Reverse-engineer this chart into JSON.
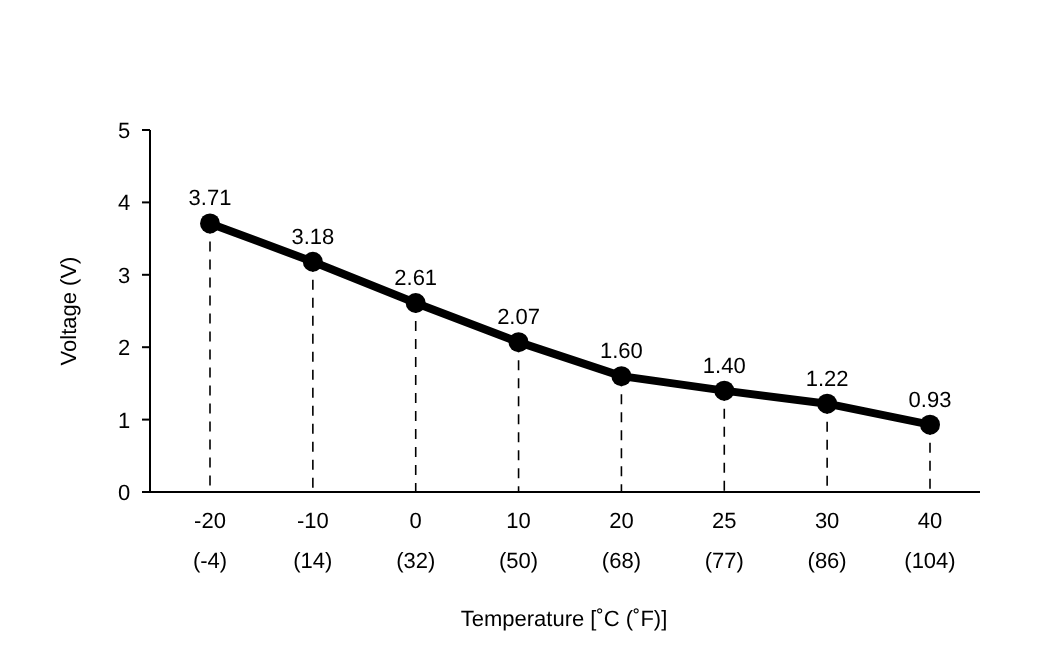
{
  "chart_data": {
    "type": "line",
    "xlabel": "Temperature [˚C (˚F)]",
    "ylabel": "Voltage (V)",
    "categories": [
      "-20\n(-4)",
      "-10\n(14)",
      "0\n(32)",
      "10\n(50)",
      "20\n(68)",
      "25\n(77)",
      "30\n(86)",
      "40\n(104)"
    ],
    "series": [
      {
        "color": "#000000",
        "values": [
          3.71,
          3.18,
          2.61,
          2.07,
          1.6,
          1.4,
          1.22,
          0.93
        ],
        "value_labels": [
          "3.71",
          "3.18",
          "2.61",
          "2.07",
          "1.60",
          "1.40",
          "1.22",
          "0.93"
        ]
      }
    ],
    "ylim": [
      0,
      5
    ],
    "yticks": [
      0,
      1,
      2,
      3,
      4,
      5
    ],
    "grid": "x",
    "marker": "circle",
    "line_style": "solid"
  }
}
